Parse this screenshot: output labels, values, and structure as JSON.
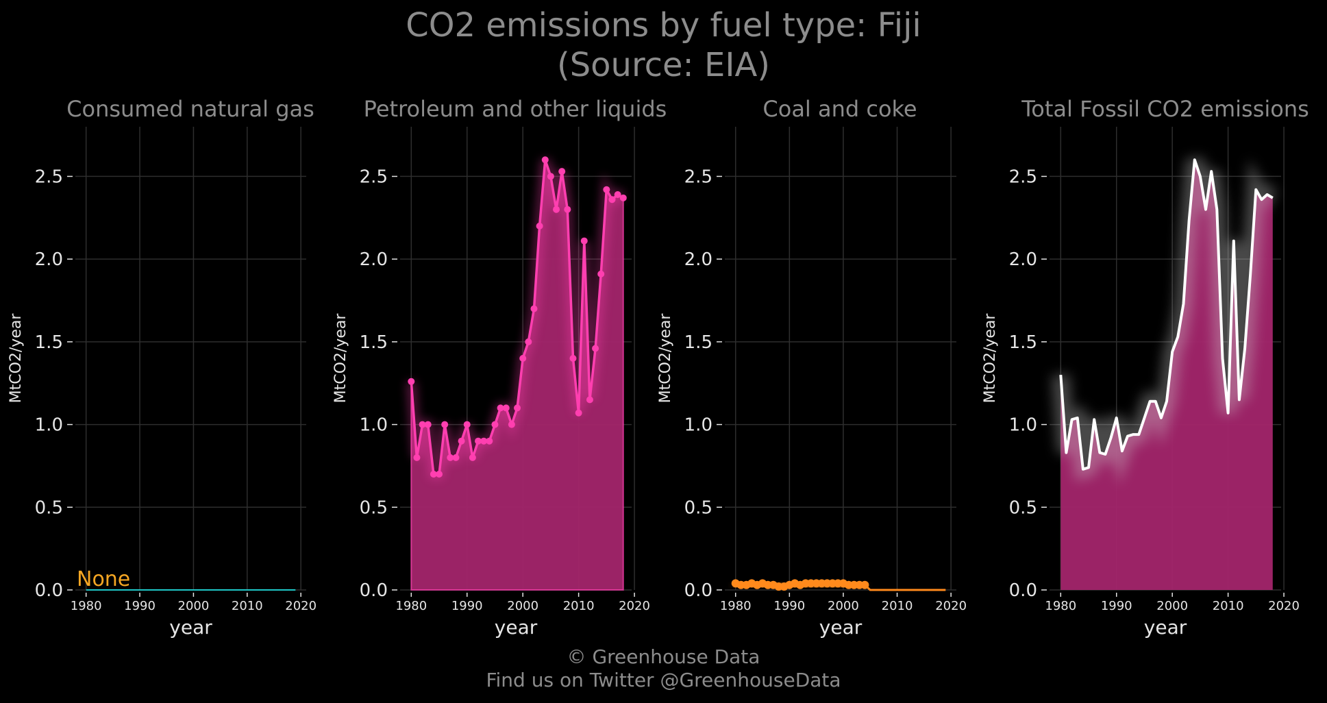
{
  "title_line1": "CO2 emissions by fuel type: Fiji",
  "title_line2": "(Source: EIA)",
  "footer_line1": "© Greenhouse Data",
  "footer_line2": "Find us on Twitter @GreenhouseData",
  "colors": {
    "background": "#000000",
    "grid": "#2e2e2e",
    "title_text": "#8c8c8c",
    "tick_text": "#e6e6e6",
    "petroleum": "#ff3fb0",
    "petroleum_fill": "#a3256b",
    "coal": "#ff8a1c",
    "gas": "#1fc8c8",
    "none_label": "#f5a623",
    "total_line": "#ffffff"
  },
  "chart_data": [
    {
      "type": "line",
      "title": "Consumed natural gas",
      "xlabel": "year",
      "ylabel": "MtCO2/year",
      "xlim": [
        1978,
        2021
      ],
      "ylim": [
        0,
        2.8
      ],
      "xticks": [
        "1980",
        "1990",
        "2000",
        "2010",
        "2020"
      ],
      "yticks": [
        "0.0",
        "0.5",
        "1.0",
        "1.5",
        "2.0",
        "2.5"
      ],
      "annotation": "None",
      "series": [
        {
          "x": [
            1980,
            2019
          ],
          "values": [
            0,
            0
          ]
        }
      ]
    },
    {
      "type": "area",
      "title": "Petroleum and other liquids",
      "xlabel": "year",
      "ylabel": "MtCO2/year",
      "xlim": [
        1978,
        2019.5
      ],
      "ylim": [
        0,
        2.8
      ],
      "xticks": [
        "1980",
        "1990",
        "2000",
        "2010",
        "2020"
      ],
      "yticks": [
        "0.0",
        "0.5",
        "1.0",
        "1.5",
        "2.0",
        "2.5"
      ],
      "series": [
        {
          "x": [
            1980,
            1981,
            1982,
            1983,
            1984,
            1985,
            1986,
            1987,
            1988,
            1989,
            1990,
            1991,
            1992,
            1993,
            1994,
            1995,
            1996,
            1997,
            1998,
            1999,
            2000,
            2001,
            2002,
            2003,
            2004,
            2005,
            2006,
            2007,
            2008,
            2009,
            2010,
            2011,
            2012,
            2013,
            2014,
            2015,
            2016,
            2017,
            2018
          ],
          "values": [
            1.26,
            0.8,
            1.0,
            1.0,
            0.7,
            0.7,
            1.0,
            0.8,
            0.8,
            0.9,
            1.0,
            0.8,
            0.9,
            0.9,
            0.9,
            1.0,
            1.1,
            1.1,
            1.0,
            1.1,
            1.4,
            1.5,
            1.7,
            2.2,
            2.6,
            2.5,
            2.3,
            2.53,
            2.3,
            1.4,
            1.07,
            2.11,
            1.15,
            1.46,
            1.91,
            2.42,
            2.36,
            2.39,
            2.37
          ]
        }
      ]
    },
    {
      "type": "line",
      "title": "Coal and coke",
      "xlabel": "year",
      "ylabel": "MtCO2/year",
      "xlim": [
        1978,
        2021
      ],
      "ylim": [
        0,
        2.8
      ],
      "xticks": [
        "1980",
        "1990",
        "2000",
        "2010",
        "2020"
      ],
      "yticks": [
        "0.0",
        "0.5",
        "1.0",
        "1.5",
        "2.0",
        "2.5"
      ],
      "series": [
        {
          "x": [
            1980,
            1981,
            1982,
            1983,
            1984,
            1985,
            1986,
            1987,
            1988,
            1989,
            1990,
            1991,
            1992,
            1993,
            1994,
            1995,
            1996,
            1997,
            1998,
            1999,
            2000,
            2001,
            2002,
            2003,
            2004,
            2005,
            2006,
            2007,
            2008,
            2009,
            2010,
            2011,
            2012,
            2013,
            2014,
            2015,
            2016,
            2017,
            2018,
            2019
          ],
          "values": [
            0.04,
            0.03,
            0.03,
            0.04,
            0.03,
            0.04,
            0.03,
            0.03,
            0.02,
            0.02,
            0.03,
            0.04,
            0.03,
            0.04,
            0.04,
            0.04,
            0.04,
            0.04,
            0.04,
            0.04,
            0.04,
            0.03,
            0.03,
            0.03,
            0.03,
            0,
            0,
            0,
            0,
            0,
            0,
            0,
            0,
            0,
            0,
            0,
            0,
            0,
            0,
            0
          ]
        }
      ]
    },
    {
      "type": "area",
      "title": "Total Fossil CO2 emissions",
      "xlabel": "year",
      "ylabel": "MtCO2/year",
      "xlim": [
        1978,
        2019.5
      ],
      "ylim": [
        0,
        2.8
      ],
      "xticks": [
        "1980",
        "1990",
        "2000",
        "2010",
        "2020"
      ],
      "yticks": [
        "0.0",
        "0.5",
        "1.0",
        "1.5",
        "2.0",
        "2.5"
      ],
      "series": [
        {
          "x": [
            1980,
            1981,
            1982,
            1983,
            1984,
            1985,
            1986,
            1987,
            1988,
            1989,
            1990,
            1991,
            1992,
            1993,
            1994,
            1995,
            1996,
            1997,
            1998,
            1999,
            2000,
            2001,
            2002,
            2003,
            2004,
            2005,
            2006,
            2007,
            2008,
            2009,
            2010,
            2011,
            2012,
            2013,
            2014,
            2015,
            2016,
            2017,
            2018
          ],
          "values": [
            1.3,
            0.83,
            1.03,
            1.04,
            0.73,
            0.74,
            1.03,
            0.83,
            0.82,
            0.92,
            1.04,
            0.84,
            0.93,
            0.94,
            0.94,
            1.04,
            1.14,
            1.14,
            1.04,
            1.14,
            1.44,
            1.53,
            1.73,
            2.23,
            2.6,
            2.5,
            2.3,
            2.53,
            2.3,
            1.4,
            1.07,
            2.11,
            1.15,
            1.46,
            1.91,
            2.42,
            2.36,
            2.39,
            2.37
          ]
        }
      ]
    }
  ]
}
